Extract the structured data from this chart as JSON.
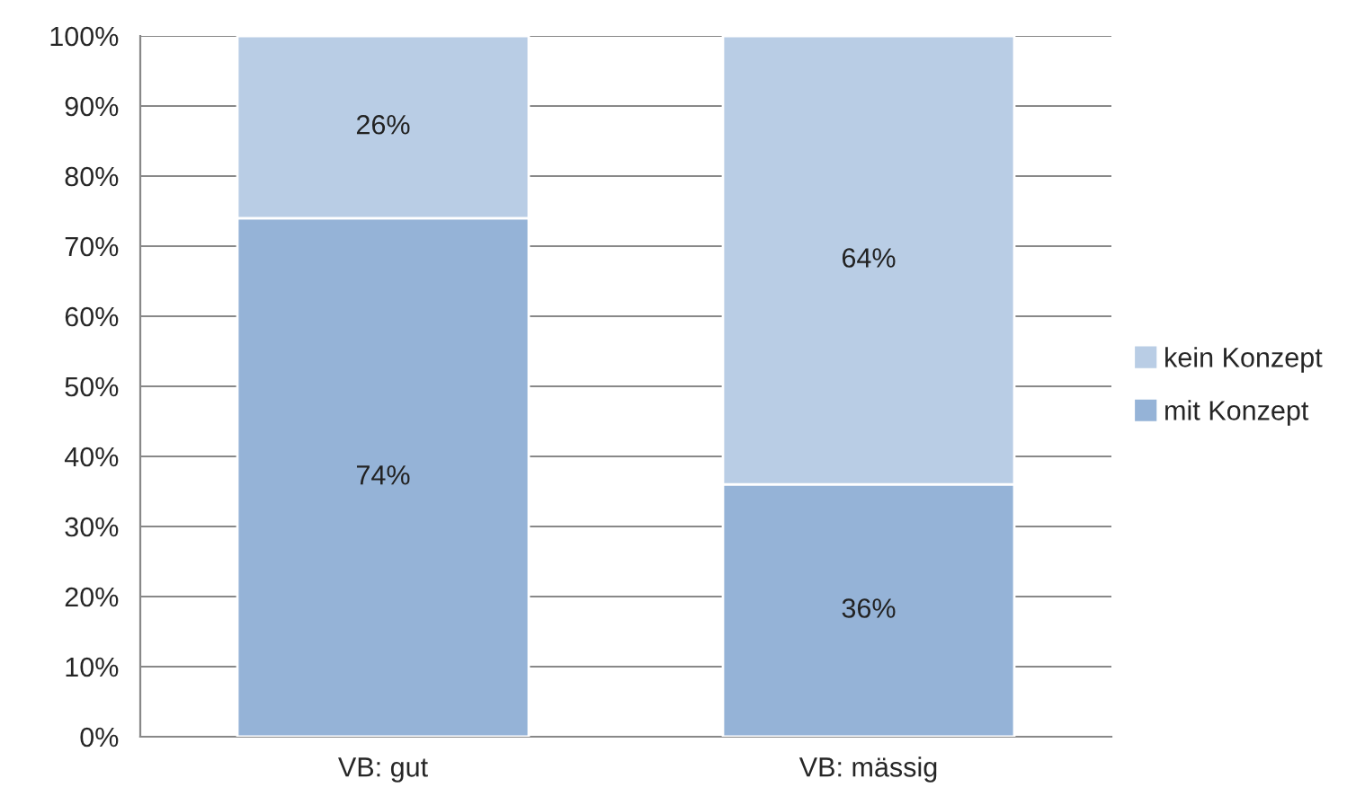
{
  "chart_data": {
    "type": "bar",
    "stacked": true,
    "categories": [
      "VB: gut",
      "VB: mässig"
    ],
    "series": [
      {
        "name": "mit Konzept",
        "color": "#95b3d7",
        "values": [
          74,
          36
        ],
        "value_labels": [
          "74%",
          "36%"
        ]
      },
      {
        "name": "kein Konzept",
        "color": "#b9cde5",
        "values": [
          26,
          64
        ],
        "value_labels": [
          "26%",
          "64%"
        ]
      }
    ],
    "ylim": [
      0,
      100
    ],
    "yticks": [
      {
        "value": 0,
        "label": "0%"
      },
      {
        "value": 10,
        "label": "10%"
      },
      {
        "value": 20,
        "label": "20%"
      },
      {
        "value": 30,
        "label": "30%"
      },
      {
        "value": 40,
        "label": "40%"
      },
      {
        "value": 50,
        "label": "50%"
      },
      {
        "value": 60,
        "label": "60%"
      },
      {
        "value": 70,
        "label": "70%"
      },
      {
        "value": 80,
        "label": "80%"
      },
      {
        "value": 90,
        "label": "90%"
      },
      {
        "value": 100,
        "label": "100%"
      }
    ],
    "grid": "y",
    "legend": "right"
  }
}
